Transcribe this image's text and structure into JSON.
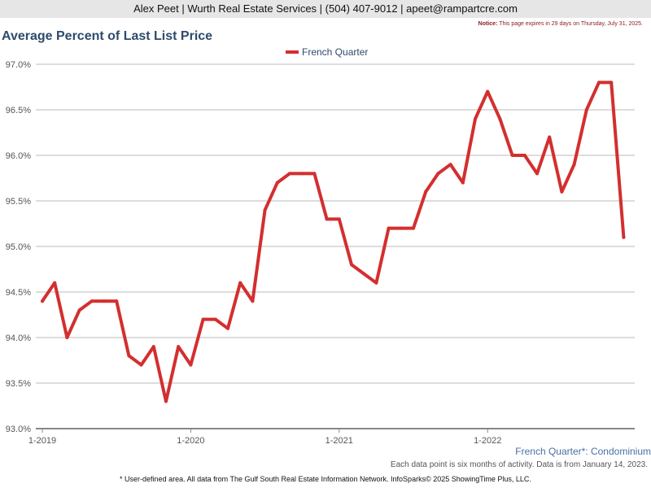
{
  "header": {
    "contact_line": "Alex Peet | Wurth Real Estate Services | (504) 407-9012 | apeet@rampartcre.com",
    "notice_label": "Notice:",
    "notice_text": "This page expires in 29 days on Thursday, July 31, 2025."
  },
  "footer": {
    "area_label": "French Quarter*: Condominium",
    "data_note": "Each data point is six months of activity. Data is from January 14, 2023.",
    "source_note": "* User-defined area. All data from The Gulf South Real Estate Information Network. InfoSparks© 2025 ShowingTime Plus, LLC."
  },
  "chart_data": {
    "type": "line",
    "title": "Average Percent of Last List Price",
    "xlabel": "",
    "ylabel": "",
    "ylim": [
      93.0,
      97.0
    ],
    "yticks": [
      "93.0%",
      "93.5%",
      "94.0%",
      "94.5%",
      "95.0%",
      "95.5%",
      "96.0%",
      "96.5%",
      "97.0%"
    ],
    "xtick_labels": [
      "1-2019",
      "1-2020",
      "1-2021",
      "1-2022"
    ],
    "x_start": "2019-01",
    "grid": true,
    "legend_position": "top-center",
    "series": [
      {
        "name": "French Quarter",
        "color": "#d32f2f",
        "values": [
          94.4,
          94.6,
          94.0,
          94.3,
          94.4,
          94.4,
          94.4,
          93.8,
          93.7,
          93.9,
          93.3,
          93.9,
          93.7,
          94.2,
          94.2,
          94.1,
          94.6,
          94.4,
          95.4,
          95.7,
          95.8,
          95.8,
          95.8,
          95.3,
          95.3,
          94.8,
          94.7,
          94.6,
          95.2,
          95.2,
          95.2,
          95.6,
          95.8,
          95.9,
          95.7,
          96.4,
          96.7,
          96.4,
          96.0,
          96.0,
          95.8,
          96.2,
          95.6,
          95.9,
          96.5,
          96.8,
          96.8,
          95.1
        ]
      }
    ]
  }
}
